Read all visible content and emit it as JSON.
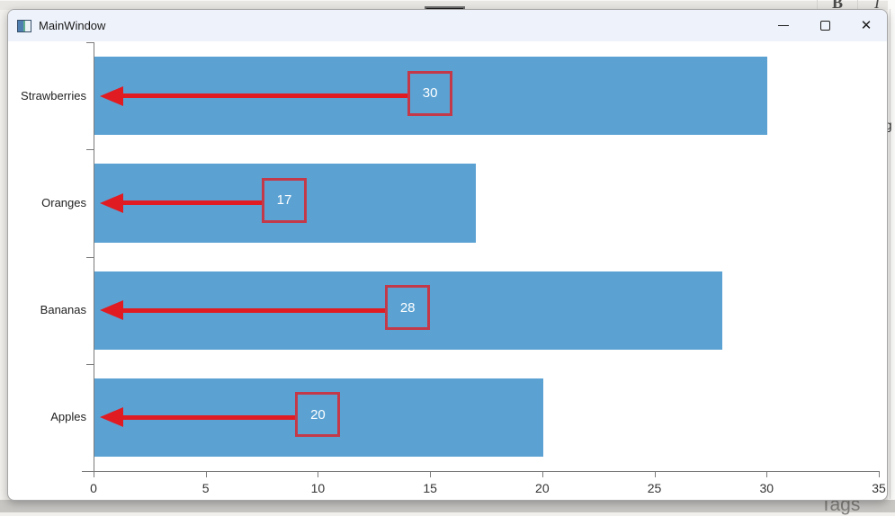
{
  "titlebar": {
    "title": "MainWindow",
    "icons": {
      "minimize": "—",
      "maximize": "▢",
      "close": "✕"
    }
  },
  "background": {
    "top_toolbar": {
      "bold": "B",
      "italic": "I"
    },
    "right_edge_text": "ng",
    "bottom_edge_text": "Tags"
  },
  "chart_data": {
    "type": "bar",
    "orientation": "horizontal",
    "categories": [
      "Strawberries",
      "Oranges",
      "Bananas",
      "Apples"
    ],
    "values": [
      30,
      17,
      28,
      20
    ],
    "data_labels": [
      "30",
      "17",
      "28",
      "20"
    ],
    "xlim": [
      0,
      35
    ],
    "x_ticks": [
      0,
      5,
      10,
      15,
      20,
      25,
      30,
      35
    ],
    "xlabel": "",
    "ylabel": "",
    "grid": false,
    "legend": false,
    "bar_color": "#5BA2D3",
    "arrow_color": "#E11B22",
    "box_border_color": "rgba(225,27,34,0.78)",
    "box_text_color": "#FFFFFF",
    "axis_color": "#7A7A7A",
    "tick_label_color": "#333333",
    "category_label_color": "#222222"
  }
}
